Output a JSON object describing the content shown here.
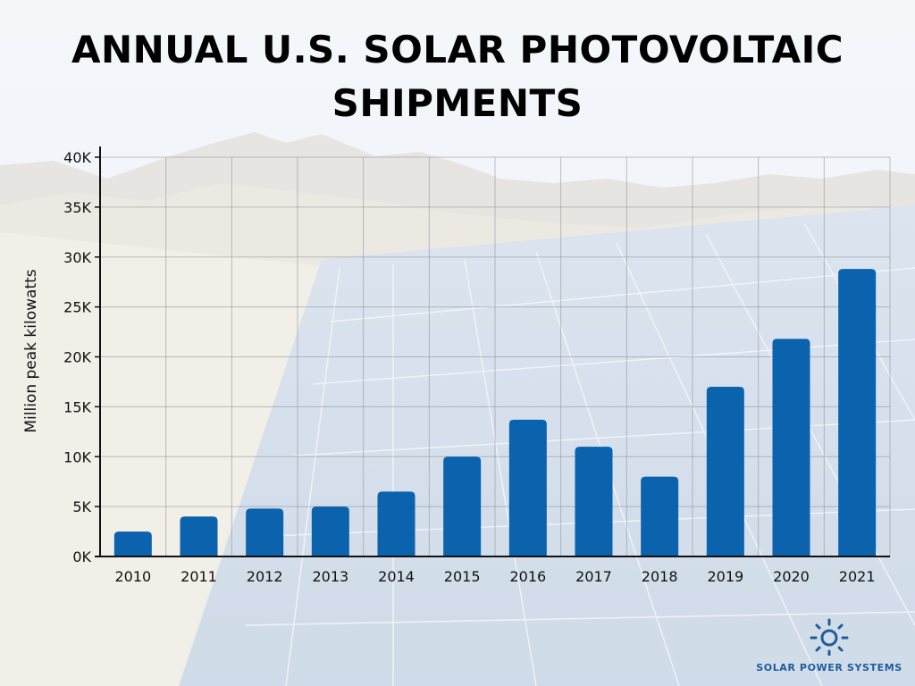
{
  "header": {
    "title_line1": "ANNUAL U.S. SOLAR PHOTOVOLTAIC",
    "title_line2": "SHIPMENTS"
  },
  "brand": {
    "name": "SOLAR POWER SYSTEMS",
    "icon": "sun-icon",
    "color": "#1f5c9e"
  },
  "colors": {
    "bar": "#0b62ad",
    "axis": "#111111",
    "grid": "#8a8f96"
  },
  "chart_data": {
    "type": "bar",
    "title": "ANNUAL U.S. SOLAR PHOTOVOLTAIC SHIPMENTS",
    "xlabel": "",
    "ylabel": "Million peak kilowatts",
    "categories": [
      "2010",
      "2011",
      "2012",
      "2013",
      "2014",
      "2015",
      "2016",
      "2017",
      "2018",
      "2019",
      "2020",
      "2021"
    ],
    "values": [
      2500,
      4000,
      4800,
      5000,
      6500,
      10000,
      13700,
      11000,
      8000,
      17000,
      21800,
      28800
    ],
    "ylim": [
      0,
      40000
    ],
    "yticks": [
      0,
      5000,
      10000,
      15000,
      20000,
      25000,
      30000,
      35000,
      40000
    ],
    "ytick_labels": [
      "0K",
      "5K",
      "10K",
      "15K",
      "20K",
      "25K",
      "30K",
      "35K",
      "40K"
    ],
    "grid": true,
    "legend": "none"
  }
}
